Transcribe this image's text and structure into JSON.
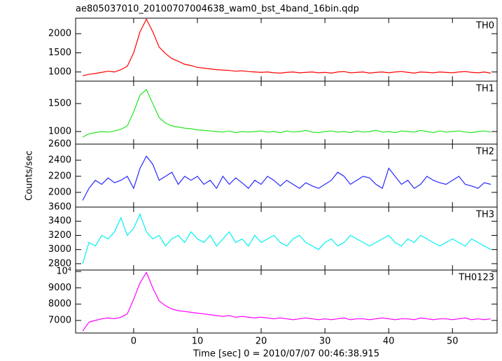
{
  "chart_data": {
    "type": "line",
    "title": "ae805037010_20100707004638_wam0_bst_4band_16bin.qdp",
    "xlabel": "Time [sec] 0 = 2010/07/07 00:46:38.915",
    "ylabel": "Counts/sec",
    "xlim": [
      -9.1,
      57
    ],
    "xticks": [
      0,
      10,
      20,
      30,
      40,
      50
    ],
    "x": [
      -8,
      -7,
      -6,
      -5,
      -4,
      -3,
      -2,
      -1,
      0,
      1,
      2,
      3,
      4,
      5,
      6,
      7,
      8,
      9,
      10,
      11,
      12,
      13,
      14,
      15,
      16,
      17,
      18,
      19,
      20,
      21,
      22,
      23,
      24,
      25,
      26,
      27,
      28,
      29,
      30,
      31,
      32,
      33,
      34,
      35,
      36,
      37,
      38,
      39,
      40,
      41,
      42,
      43,
      44,
      45,
      46,
      47,
      48,
      49,
      50,
      51,
      52,
      53,
      54,
      55,
      56
    ],
    "panels": [
      {
        "name": "TH0",
        "color": "#ff0000",
        "ylim": [
          760,
          2405
        ],
        "yticks": [
          1000,
          1500,
          2000
        ],
        "values": [
          900,
          940,
          960,
          990,
          1020,
          1000,
          1060,
          1150,
          1500,
          2050,
          2380,
          2050,
          1650,
          1480,
          1350,
          1280,
          1200,
          1170,
          1120,
          1100,
          1080,
          1060,
          1050,
          1040,
          1020,
          1030,
          1010,
          1000,
          990,
          1000,
          980,
          970,
          990,
          1000,
          980,
          990,
          1000,
          980,
          990,
          970,
          1000,
          1010,
          980,
          990,
          1000,
          970,
          990,
          1000,
          980,
          1000,
          1010,
          990,
          970,
          1000,
          990,
          980,
          1000,
          990,
          980,
          1000,
          1010,
          990,
          980,
          1000,
          970
        ]
      },
      {
        "name": "TH1",
        "color": "#22e622",
        "ylim": [
          775,
          1900
        ],
        "yticks": [
          1000,
          1500
        ],
        "values": [
          900,
          960,
          980,
          1000,
          990,
          1010,
          1040,
          1100,
          1350,
          1650,
          1750,
          1500,
          1250,
          1150,
          1100,
          1080,
          1060,
          1050,
          1030,
          1020,
          1010,
          1000,
          990,
          1010,
          980,
          1000,
          990,
          1000,
          1010,
          990,
          1000,
          980,
          1010,
          990,
          1000,
          1020,
          990,
          980,
          1000,
          1010,
          990,
          1000,
          980,
          1010,
          990,
          1000,
          1020,
          990,
          1000,
          980,
          1010,
          1000,
          990,
          1020,
          1000,
          980,
          1010,
          990,
          1000,
          1010,
          990,
          980,
          1000,
          1010,
          990
        ]
      },
      {
        "name": "TH2",
        "color": "#2828ff",
        "ylim": [
          1817,
          2600
        ],
        "yticks": [
          2000,
          2200,
          2400,
          2600
        ],
        "values": [
          1900,
          2050,
          2150,
          2100,
          2180,
          2120,
          2150,
          2200,
          2050,
          2300,
          2450,
          2350,
          2150,
          2200,
          2250,
          2100,
          2200,
          2150,
          2200,
          2100,
          2150,
          2050,
          2200,
          2100,
          2180,
          2120,
          2050,
          2150,
          2100,
          2200,
          2150,
          2080,
          2150,
          2100,
          2050,
          2120,
          2080,
          2050,
          2100,
          2150,
          2250,
          2200,
          2100,
          2150,
          2200,
          2180,
          2100,
          2050,
          2300,
          2200,
          2100,
          2150,
          2050,
          2100,
          2200,
          2150,
          2120,
          2100,
          2150,
          2200,
          2100,
          2080,
          2050,
          2120,
          2100
        ]
      },
      {
        "name": "TH3",
        "color": "#00f0f0",
        "ylim": [
          2710,
          3600
        ],
        "yticks": [
          2800,
          3000,
          3200,
          3400,
          3600
        ],
        "values": [
          2800,
          3100,
          3050,
          3200,
          3150,
          3250,
          3450,
          3200,
          3300,
          3500,
          3250,
          3150,
          3200,
          3050,
          3150,
          3200,
          3100,
          3250,
          3150,
          3100,
          3200,
          3050,
          3150,
          3250,
          3100,
          3150,
          3050,
          3200,
          3100,
          3150,
          3200,
          3100,
          3050,
          3150,
          3200,
          3100,
          3050,
          3000,
          3100,
          3150,
          3050,
          3100,
          3200,
          3150,
          3100,
          3050,
          3100,
          3150,
          3200,
          3100,
          3050,
          3150,
          3100,
          3200,
          3150,
          3100,
          3050,
          3100,
          3150,
          3100,
          3050,
          3150,
          3100,
          3050,
          3000
        ]
      },
      {
        "name": "TH0123",
        "color": "#ff00ff",
        "ylim": [
          6230,
          10090
        ],
        "yticks": [
          7000,
          8000,
          9000,
          {
            "value": 10000,
            "label": "10⁴"
          }
        ],
        "values": [
          6350,
          6900,
          7000,
          7100,
          7150,
          7100,
          7200,
          7400,
          8300,
          9300,
          9950,
          9000,
          8200,
          7900,
          7700,
          7600,
          7550,
          7500,
          7450,
          7400,
          7350,
          7300,
          7250,
          7300,
          7200,
          7250,
          7200,
          7150,
          7200,
          7150,
          7100,
          7150,
          7100,
          7050,
          7100,
          7150,
          7100,
          7050,
          7100,
          7050,
          7100,
          7150,
          7050,
          7100,
          7100,
          7050,
          7100,
          7150,
          7100,
          7050,
          7100,
          7100,
          7050,
          7150,
          7100,
          7050,
          7100,
          7100,
          7050,
          7100,
          7150,
          7050,
          7100,
          7050,
          7100
        ]
      }
    ]
  }
}
